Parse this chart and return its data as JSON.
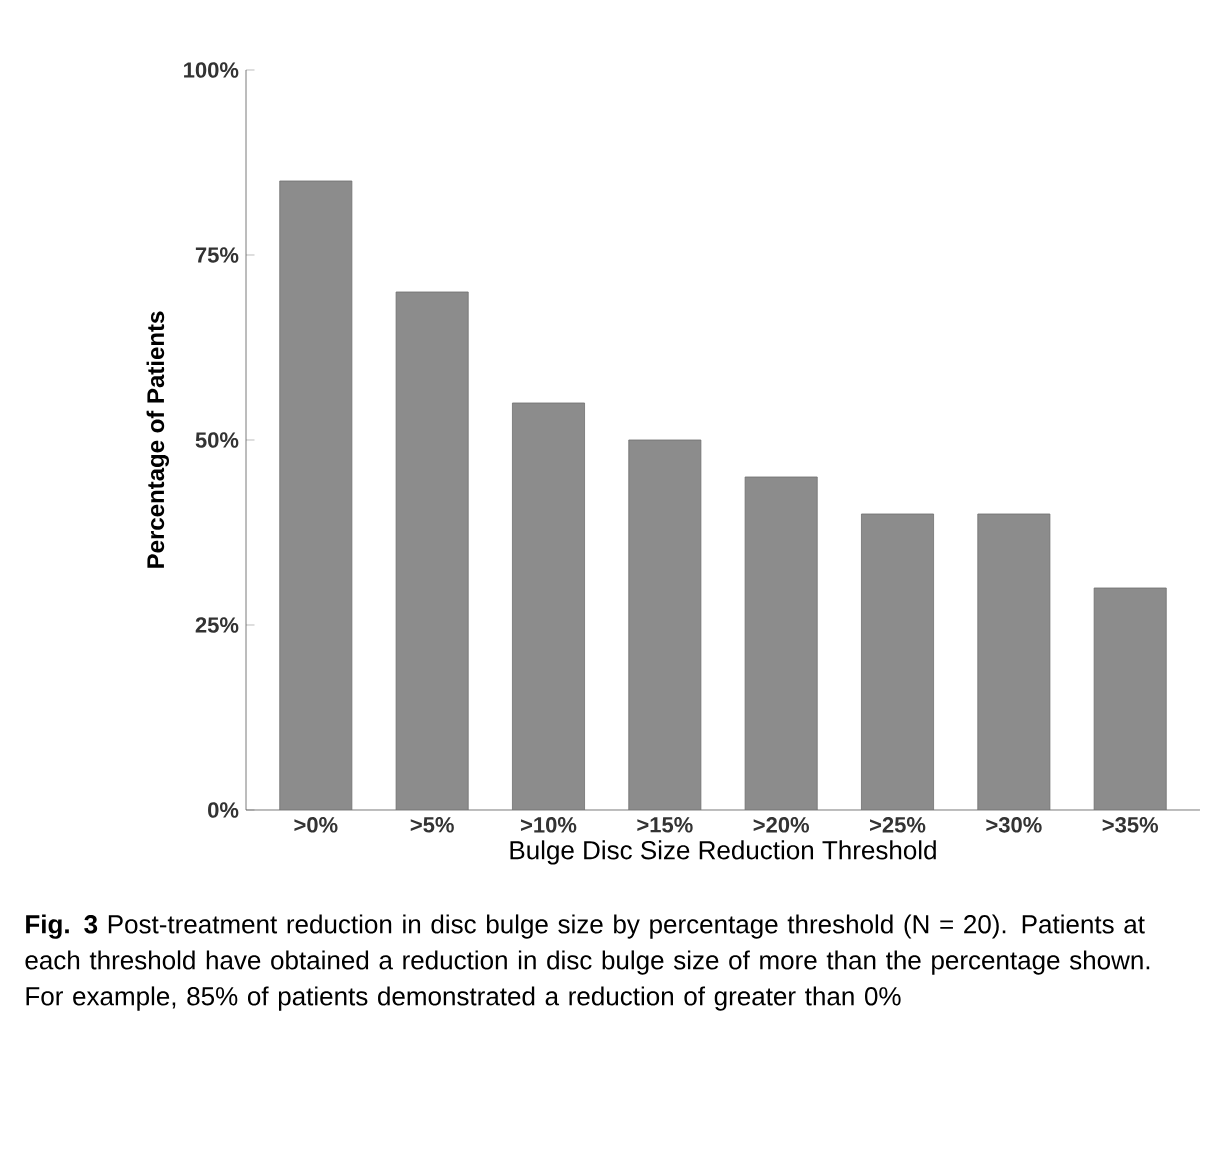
{
  "chart_data": {
    "type": "bar",
    "categories": [
      ">0%",
      ">5%",
      ">10%",
      ">15%",
      ">20%",
      ">25%",
      ">30%",
      ">35%"
    ],
    "values": [
      85,
      70,
      55,
      50,
      45,
      40,
      40,
      30
    ],
    "color": "#8c8c8c",
    "ylim": [
      0,
      100
    ],
    "yticks": [
      {
        "value": 0,
        "label": "0%"
      },
      {
        "value": 25,
        "label": "25%"
      },
      {
        "value": 50,
        "label": "50%"
      },
      {
        "value": 75,
        "label": "75%"
      },
      {
        "value": 100,
        "label": "100%"
      }
    ],
    "xlabel": "Bulge Disc Size Reduction Threshold",
    "ylabel": "Percentage of Patients",
    "annotations": [
      "**Fig. 3** Post-treatment reduction in disc bulge size by percentage threshold (N = 20). Patients at each threshold have obtained a reduction in disc bulge size of more than the percentage shown. For example, 85% of patients demonstrated a reduction of greater than 0%"
    ]
  }
}
